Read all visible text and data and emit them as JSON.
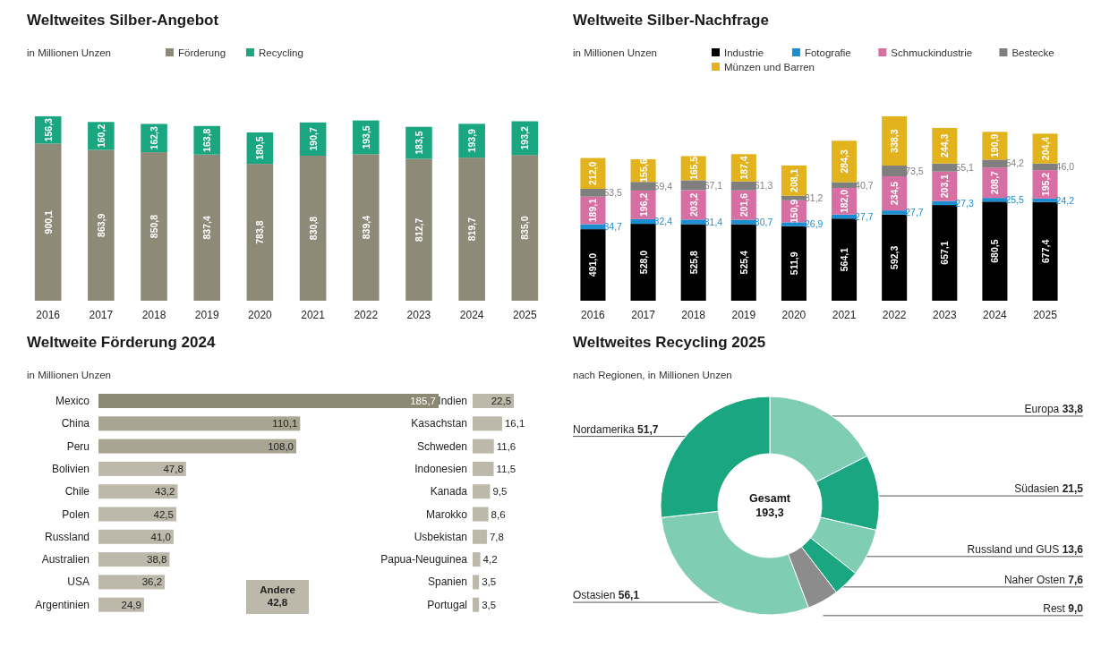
{
  "chart_data": [
    {
      "type": "bar",
      "title": "Weltweites Silber-Angebot",
      "subtitle": "in Millionen Unzen",
      "stacked": true,
      "legend": "top",
      "categories": [
        "2016",
        "2017",
        "2018",
        "2019",
        "2020",
        "2021",
        "2022",
        "2023",
        "2024",
        "2025"
      ],
      "series": [
        {
          "name": "Förderung",
          "color": "#8d8a78",
          "values": [
            900.1,
            863.9,
            850.8,
            837.4,
            783.8,
            830.8,
            839.4,
            812.7,
            819.7,
            835.0
          ],
          "value_labels": [
            "900,1",
            "863,9",
            "850,8",
            "837,4",
            "783,8",
            "830,8",
            "839,4",
            "812,7",
            "819,7",
            "835,0"
          ]
        },
        {
          "name": "Recycling",
          "color": "#1aa680",
          "values": [
            156.3,
            160.2,
            162.3,
            163.8,
            180.5,
            190.7,
            193.5,
            183.5,
            193.9,
            193.2
          ],
          "value_labels": [
            "156,3",
            "160,2",
            "162,3",
            "163,8",
            "180,5",
            "190,7",
            "193,5",
            "183,5",
            "193,9",
            "193,2"
          ]
        }
      ]
    },
    {
      "type": "bar",
      "title": "Weltweite Silber-Nachfrage",
      "subtitle": "in Millionen Unzen",
      "stacked": true,
      "legend": "top",
      "categories": [
        "2016",
        "2017",
        "2018",
        "2019",
        "2020",
        "2021",
        "2022",
        "2023",
        "2024",
        "2025"
      ],
      "series": [
        {
          "name": "Industrie",
          "color": "#000000",
          "values": [
            491.0,
            528.0,
            525.8,
            525.4,
            511.9,
            564.1,
            592.3,
            657.1,
            680.5,
            677.4
          ],
          "value_labels": [
            "491,0",
            "528,0",
            "525,8",
            "525,4",
            "511,9",
            "564,1",
            "592,3",
            "657,1",
            "680,5",
            "677,4"
          ]
        },
        {
          "name": "Fotografie",
          "color": "#1a8ed0",
          "values": [
            34.7,
            32.4,
            31.4,
            30.7,
            26.9,
            27.7,
            27.7,
            27.3,
            25.5,
            24.2
          ],
          "value_labels": [
            "34,7",
            "32,4",
            "31,4",
            "30,7",
            "26,9",
            "27,7",
            "27,7",
            "27,3",
            "25,5",
            "24,2"
          ]
        },
        {
          "name": "Schmuckindustrie",
          "color": "#d86fa3",
          "values": [
            189.1,
            196.2,
            203.2,
            201.6,
            150.9,
            182.0,
            234.5,
            203.1,
            208.7,
            195.2
          ],
          "value_labels": [
            "189,1",
            "196,2",
            "203,2",
            "201,6",
            "150,9",
            "182,0",
            "234,5",
            "203,1",
            "208,7",
            "195,2"
          ]
        },
        {
          "name": "Bestecke",
          "color": "#7f7f7f",
          "values": [
            53.5,
            59.4,
            67.1,
            61.3,
            31.2,
            40.7,
            73.5,
            55.1,
            54.2,
            46.0
          ],
          "value_labels": [
            "53,5",
            "59,4",
            "67,1",
            "61,3",
            "31,2",
            "40,7",
            "73,5",
            "55,1",
            "54,2",
            "46,0"
          ]
        },
        {
          "name": "Münzen und Barren",
          "color": "#e2b31c",
          "values": [
            212.0,
            155.6,
            165.5,
            187.4,
            208.1,
            284.3,
            338.3,
            244.3,
            190.9,
            204.4
          ],
          "value_labels": [
            "212,0",
            "155,6",
            "165,5",
            "187,4",
            "208,1",
            "284,3",
            "338,3",
            "244,3",
            "190,9",
            "204,4"
          ]
        }
      ]
    },
    {
      "type": "bar",
      "orientation": "horizontal",
      "title": "Weltweite Förderung 2024",
      "subtitle": "in Millionen Unzen",
      "categories": [
        "Mexico",
        "China",
        "Peru",
        "Bolivien",
        "Chile",
        "Polen",
        "Russland",
        "Australien",
        "USA",
        "Argentinien"
      ],
      "values": [
        185.7,
        110.1,
        108.0,
        47.8,
        43.2,
        42.5,
        41.0,
        38.8,
        36.2,
        24.9
      ],
      "value_labels": [
        "185,7",
        "110,1",
        "108,0",
        "47,8",
        "43,2",
        "42,5",
        "41,0",
        "38,8",
        "36,2",
        "24,9"
      ],
      "colors": [
        "#8c8874",
        "#a9a593",
        "#a9a593",
        "#bdb9aa",
        "#bdb9aa",
        "#bdb9aa",
        "#bdb9aa",
        "#bdb9aa",
        "#bdb9aa",
        "#bdb9aa"
      ],
      "annotations": [
        "Andere 42,8"
      ]
    },
    {
      "type": "bar",
      "orientation": "horizontal",
      "categories": [
        "Indien",
        "Kasachstan",
        "Schweden",
        "Indonesien",
        "Kanada",
        "Marokko",
        "Usbekistan",
        "Papua-Neuguinea",
        "Spanien",
        "Portugal"
      ],
      "values": [
        22.5,
        16.1,
        11.6,
        11.5,
        9.5,
        8.6,
        7.8,
        4.2,
        3.5,
        3.5
      ],
      "value_labels": [
        "22,5",
        "16,1",
        "11,6",
        "11,5",
        "9,5",
        "8,6",
        "7,8",
        "4,2",
        "3,5",
        "3,5"
      ],
      "colors": [
        "#bdb9aa",
        "#bdb9aa",
        "#bdb9aa",
        "#bdb9aa",
        "#bdb9aa",
        "#bdb9aa",
        "#bdb9aa",
        "#bdb9aa",
        "#bdb9aa",
        "#bdb9aa"
      ]
    },
    {
      "type": "donut",
      "title": "Weltweites Recycling 2025",
      "subtitle": "nach Regionen, in Millionen Unzen",
      "categories": [
        "Europa",
        "Südasien",
        "Russland und GUS",
        "Naher Osten",
        "Rest",
        "Ostasien",
        "Nordamerika"
      ],
      "values": [
        33.8,
        21.5,
        13.6,
        7.6,
        9.0,
        56.1,
        51.7
      ],
      "value_labels": [
        "33,8",
        "21,5",
        "13,6",
        "7,6",
        "9,0",
        "56,1",
        "51,7"
      ],
      "colors": [
        "#7fcdb3",
        "#1aa680",
        "#7fcdb3",
        "#1aa680",
        "#8c8c8c",
        "#7fcdb3",
        "#1aa680"
      ],
      "annotations": [
        "Gesamt 193,3"
      ]
    }
  ]
}
